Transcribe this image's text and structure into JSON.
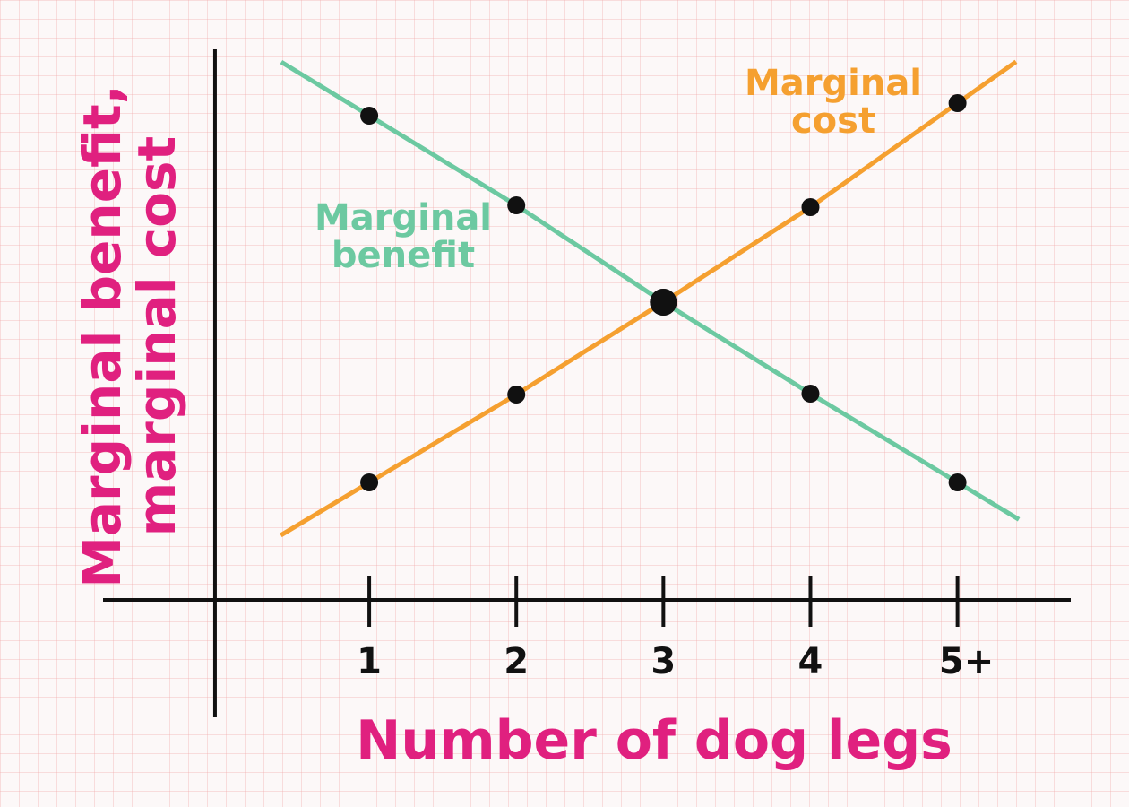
{
  "chart_data": {
    "type": "line",
    "x_label": "Number of dog legs",
    "y_label": "Marginal benefit, marginal cost",
    "x": [
      1,
      2,
      3,
      4,
      5
    ],
    "series": [
      {
        "name": "Marginal benefit",
        "color": "#6cc9a1",
        "values": [
          5.4,
          4.4,
          3.32,
          2.3,
          1.31
        ]
      },
      {
        "name": "Marginal cost",
        "color": "#f5a030",
        "values": [
          1.31,
          2.29,
          3.32,
          4.38,
          5.54
        ]
      }
    ],
    "xlim": [
      -0.81,
      5.77
    ],
    "ylim": [
      -1.31,
      6.14
    ],
    "xticks": [
      1,
      2,
      3,
      4,
      {
        "value": 5,
        "label": "5+"
      }
    ],
    "marker_color": "#111111",
    "title_color": "#e0207f"
  }
}
